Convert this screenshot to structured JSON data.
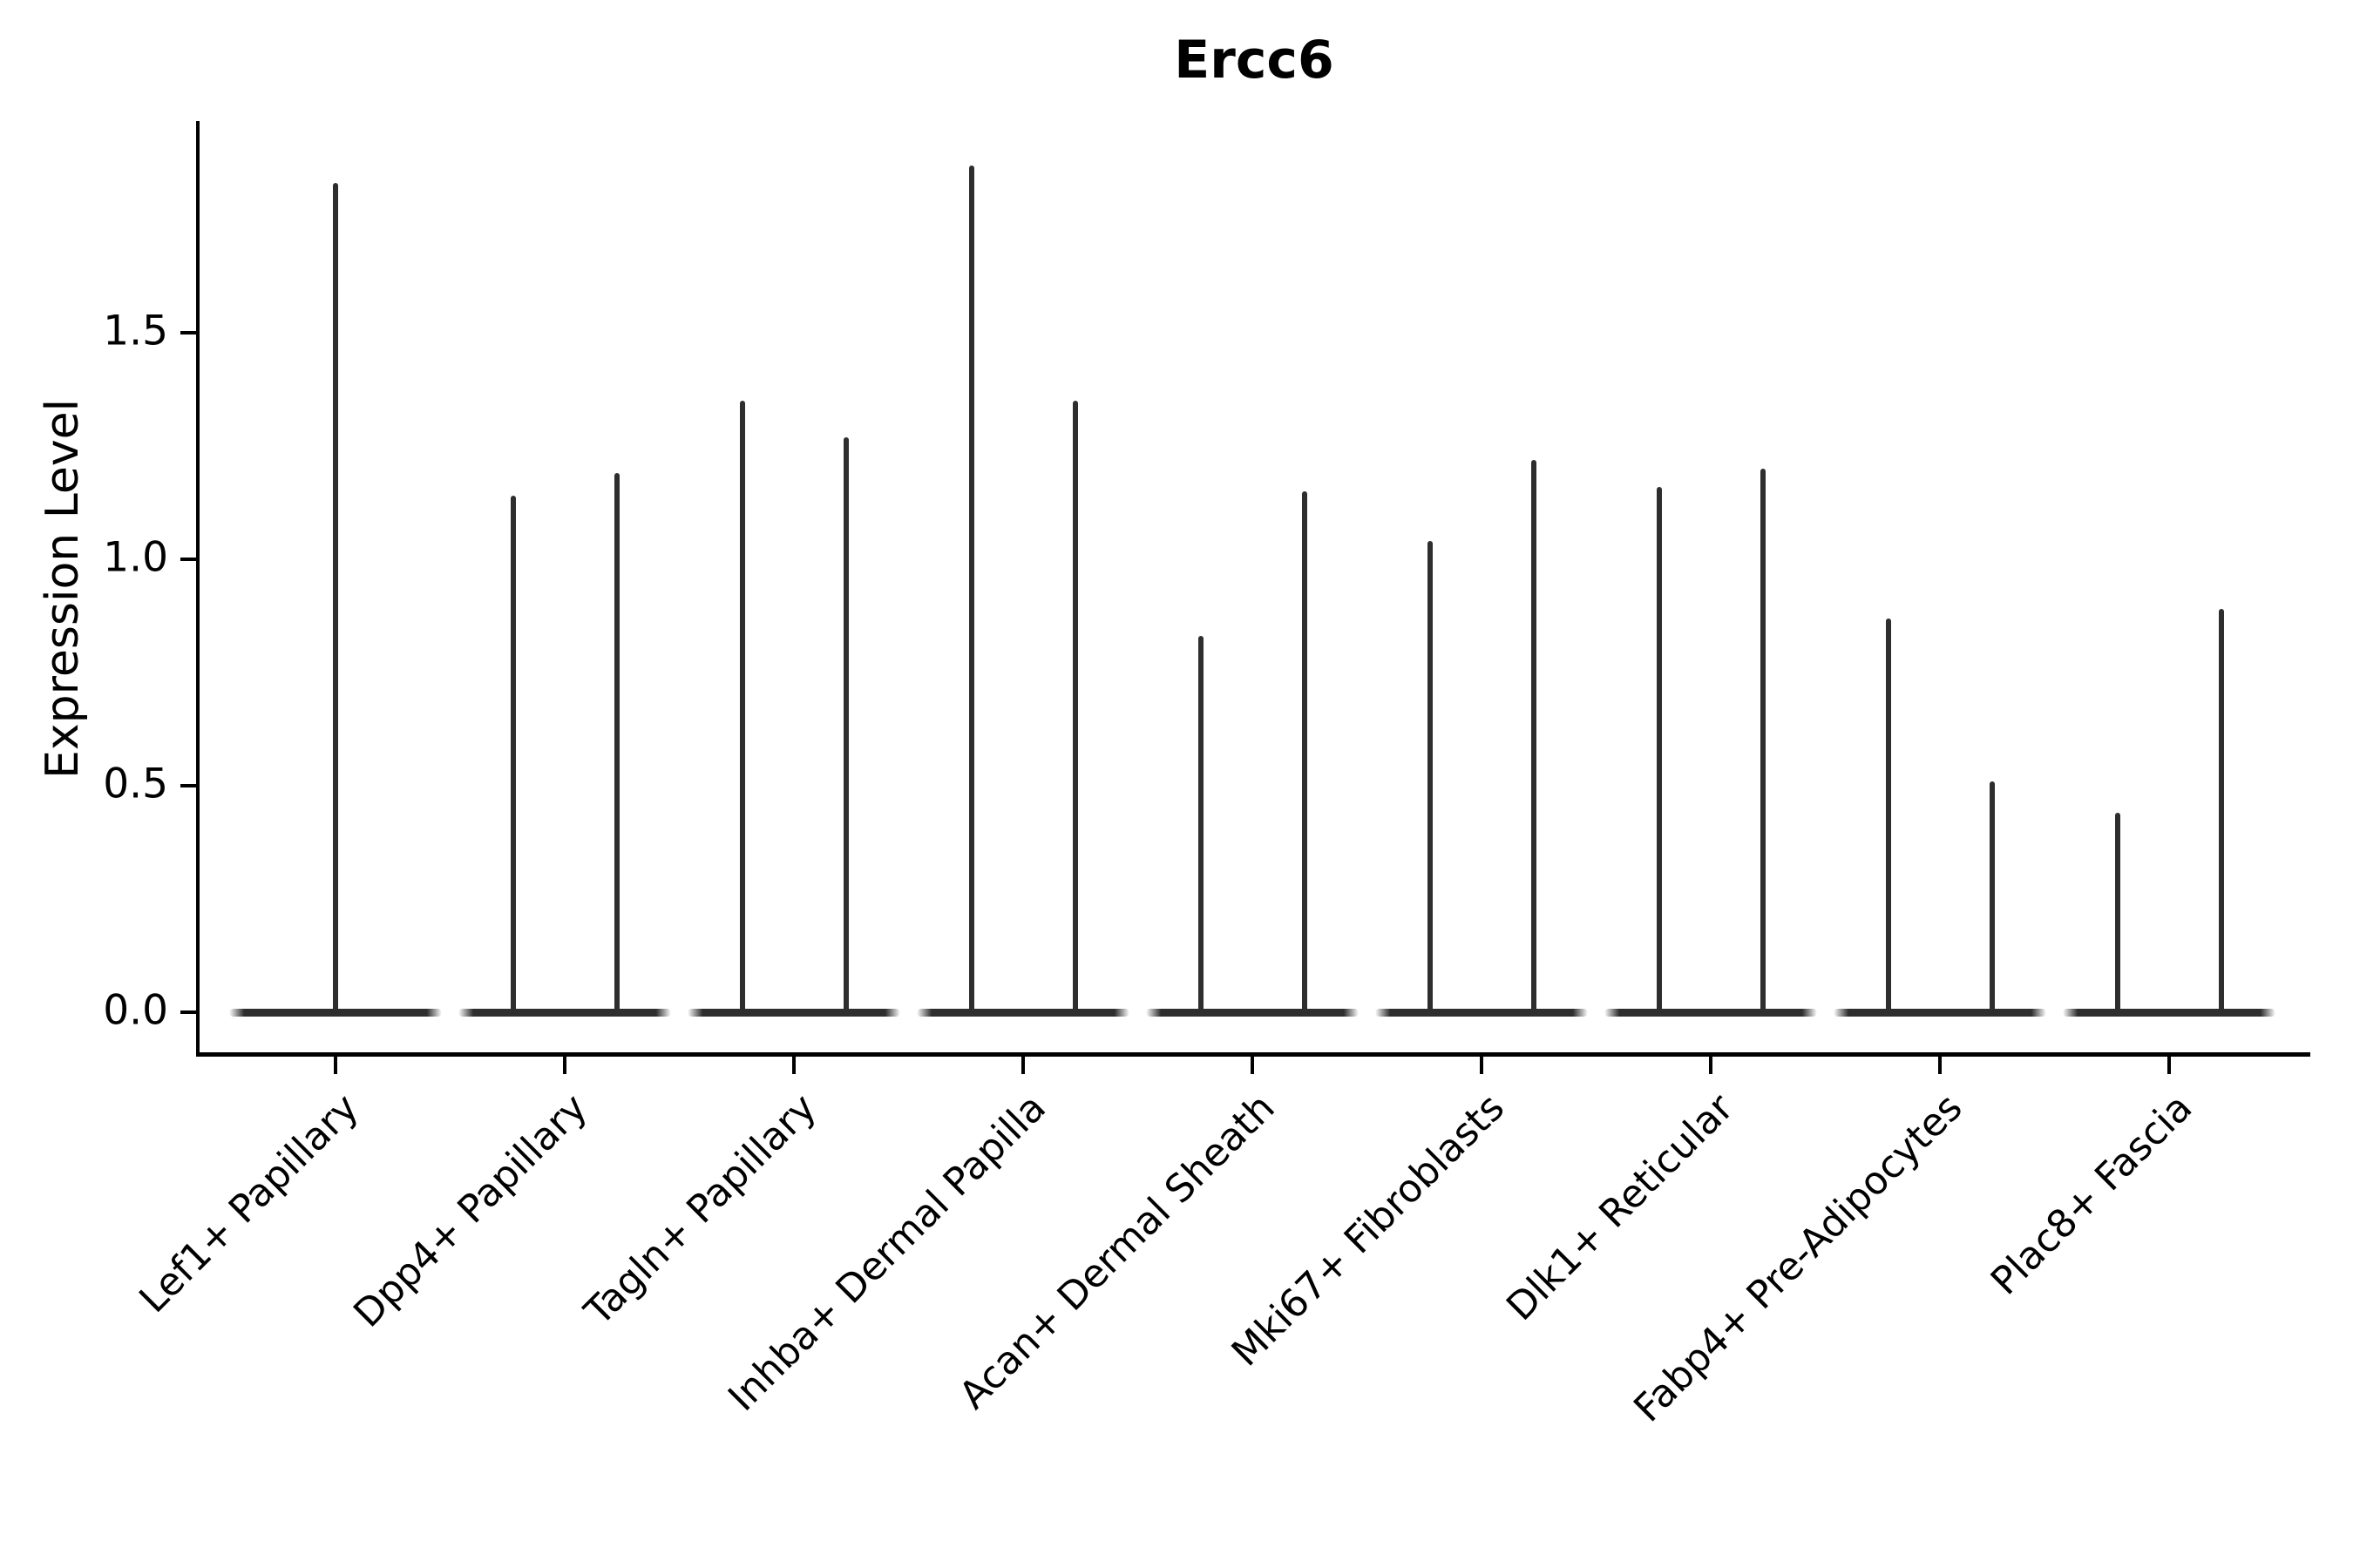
{
  "chart_data": {
    "type": "violin",
    "title": "Ercc6",
    "xlabel": "",
    "ylabel": "Expression Level",
    "yticks": [
      "0.0",
      "0.5",
      "1.0",
      "1.5"
    ],
    "ytick_values": [
      0,
      0.5,
      1.0,
      1.5
    ],
    "ylim": [
      -0.09,
      1.96
    ],
    "grid": false,
    "legend": "none",
    "categories": [
      "Lef1+ Papillary",
      "Dpp4+ Papillary",
      "Tagln+ Papillary",
      "Inhba+ Dermal Papilla",
      "Acan+ Dermal Sheath",
      "Mki67+ Fibroblasts",
      "Dlk1+ Reticular",
      "Fabp4+ Pre-Adipocytes",
      "Plac8+ Fascia"
    ],
    "series": [
      {
        "category": "Lef1+ Papillary",
        "peaks": [
          1.83
        ]
      },
      {
        "category": "Dpp4+ Papillary",
        "peaks": [
          1.14,
          1.19
        ]
      },
      {
        "category": "Tagln+ Papillary",
        "peaks": [
          1.35,
          1.27
        ]
      },
      {
        "category": "Inhba+ Dermal Papilla",
        "peaks": [
          1.87,
          1.35
        ]
      },
      {
        "category": "Acan+ Dermal Sheath",
        "peaks": [
          0.83,
          1.15
        ]
      },
      {
        "category": "Mki67+ Fibroblasts",
        "peaks": [
          1.04,
          1.22
        ]
      },
      {
        "category": "Dlk1+ Reticular",
        "peaks": [
          1.16,
          1.2
        ]
      },
      {
        "category": "Fabp4+ Pre-Adipocytes",
        "peaks": [
          0.87,
          0.51
        ]
      },
      {
        "category": "Plac8+ Fascia",
        "peaks": [
          0.44,
          0.89
        ]
      }
    ],
    "colors": {
      "violin": "#2e2e2e",
      "axis": "#000000",
      "text": "#000000",
      "background": "#ffffff"
    }
  }
}
